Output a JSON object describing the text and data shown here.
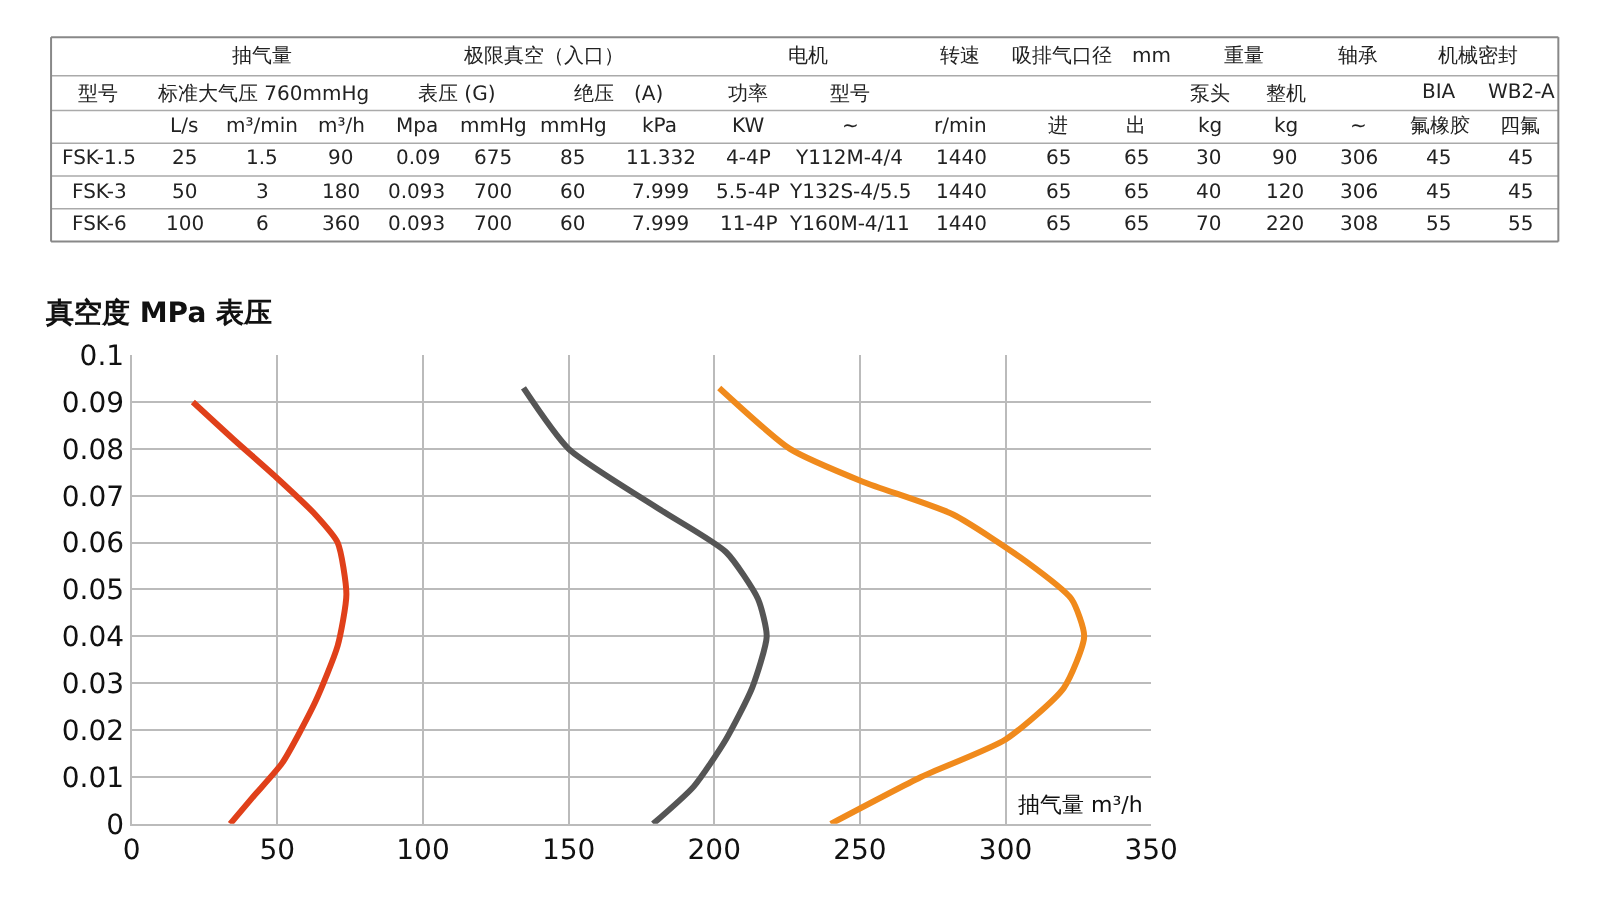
{
  "chart_data": [
    {
      "type": "other",
      "cell_labels": [
        [
          null,
          "抽气量",
          null,
          null,
          "极限真空（入口）",
          null,
          null,
          null,
          "电机",
          null,
          "转速",
          "吸排气口径　mm",
          null,
          "重量",
          null,
          "轴承",
          "机械密封",
          null
        ],
        [
          "型号",
          "标准大气压 760mmHg",
          null,
          null,
          "表压 (G)",
          null,
          "绝压　(A)",
          null,
          "功率",
          "型号",
          null,
          null,
          null,
          "泵头",
          "整机",
          null,
          "BIA",
          "WB2-A"
        ],
        [
          null,
          "L/s",
          "m³/min",
          "m³/h",
          "Mpa",
          "mmHg",
          "mmHg",
          "kPa",
          "KW",
          "~",
          "r/min",
          "进",
          "出",
          "kg",
          "kg",
          "~",
          "氟橡胶",
          "四氟"
        ],
        [
          "FSK-1.5",
          "25",
          "1.5",
          "90",
          "0.09",
          "675",
          "85",
          "11.332",
          "4-4P",
          "Y112M-4/4",
          "1440",
          "65",
          "65",
          "30",
          "90",
          "306",
          "45",
          "45"
        ],
        [
          "FSK-3",
          "50",
          "3",
          "180",
          "0.093",
          "700",
          "60",
          "7.999",
          "5.5-4P",
          "Y132S-4/5.5",
          "1440",
          "65",
          "65",
          "40",
          "120",
          "306",
          "45",
          "45"
        ],
        [
          "FSK-6",
          "100",
          "6",
          "360",
          "0.093",
          "700",
          "60",
          "7.999",
          "11-4P",
          "Y160M-4/11",
          "1440",
          "65",
          "65",
          "70",
          "220",
          "308",
          "55",
          "55"
        ]
      ]
    },
    {
      "type": "line",
      "ylabel": "真空度 MPa 表压",
      "xlabel": "抽气量 m³/h",
      "xlim": [
        0,
        350
      ],
      "xticks": [
        0,
        50,
        100,
        150,
        200,
        250,
        300,
        350
      ],
      "ylim": [
        0,
        0.1
      ],
      "yticks": [
        0,
        0.01,
        0.02,
        0.03,
        0.04,
        0.05,
        0.06,
        0.07,
        0.08,
        0.09,
        0.1
      ],
      "grid": true,
      "marker": "none",
      "line_style": "solid",
      "series": [
        {
          "color": "#e0401a",
          "x": [
            21,
            35,
            49.5,
            63,
            70.7,
            73.7,
            70.7,
            63,
            51.7,
            42,
            33.8
          ],
          "values": [
            0.09,
            0.082,
            0.074,
            0.066,
            0.06,
            0.049,
            0.038,
            0.026,
            0.013,
            0.006,
            0
          ]
        },
        {
          "color": "#555555",
          "x": [
            134.5,
            150,
            181.5,
            204,
            215,
            218,
            213,
            204,
            193,
            179
          ],
          "values": [
            0.093,
            0.08,
            0.067,
            0.058,
            0.048,
            0.04,
            0.029,
            0.018,
            0.008,
            0
          ]
        },
        {
          "color": "#f08a1c",
          "x": [
            201.7,
            226,
            251,
            282,
            307,
            322.6,
            327,
            320,
            300,
            271,
            240
          ],
          "values": [
            0.093,
            0.08,
            0.073,
            0.066,
            0.056,
            0.048,
            0.04,
            0.029,
            0.018,
            0.01,
            0
          ]
        }
      ]
    }
  ]
}
